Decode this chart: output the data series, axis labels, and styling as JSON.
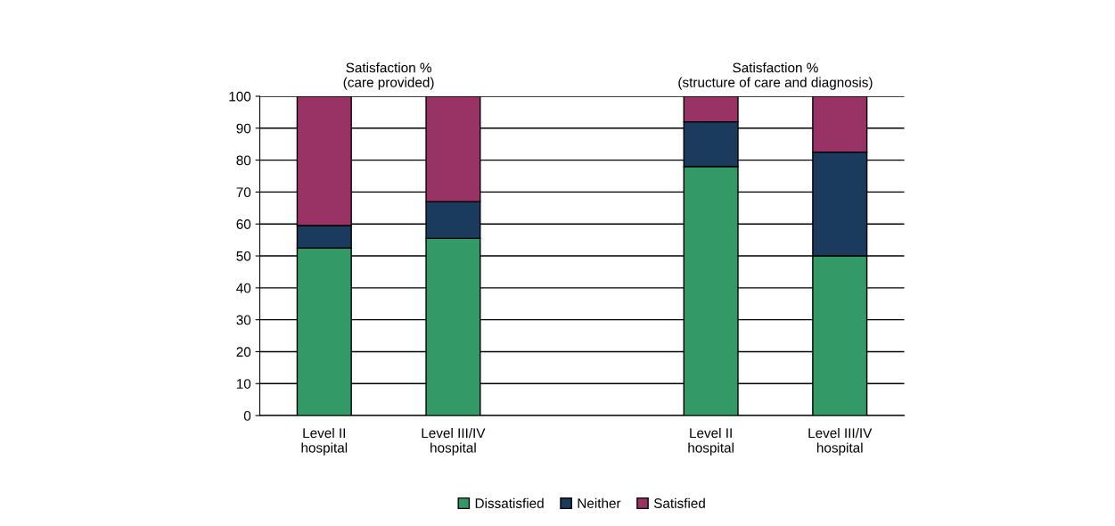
{
  "chart_data": {
    "type": "bar",
    "stacked": true,
    "categories": [
      "Level II\nhospital",
      "Level III/IV\nhospital",
      null,
      "Level II\nhospital",
      "Level III/IV\nhospital"
    ],
    "series": [
      {
        "name": "Dissatisfied",
        "color": "#339966",
        "values": [
          52.5,
          55.5,
          null,
          78,
          50
        ]
      },
      {
        "name": "Neither",
        "color": "#1a3a5e",
        "values": [
          7,
          11.5,
          null,
          14,
          32.5
        ]
      },
      {
        "name": "Satisfied",
        "color": "#993366",
        "values": [
          40.5,
          33,
          null,
          8,
          17.5
        ]
      }
    ],
    "annotations": [
      "Satisfaction %\n(care provided)",
      "Satisfaction %\n(structure of care and diagnosis)"
    ],
    "ylim": [
      0,
      100
    ],
    "yticks": [
      0,
      10,
      20,
      30,
      40,
      50,
      60,
      70,
      80,
      90,
      100
    ],
    "grid": "y",
    "legend": "bottom"
  }
}
